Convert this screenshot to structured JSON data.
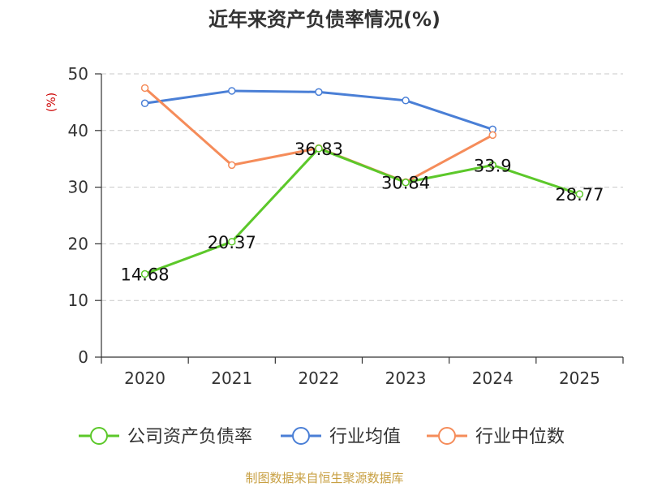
{
  "chart_data": {
    "type": "line",
    "title": "近年来资产负债率情况(%)",
    "ylabel": "(%)",
    "xlabel": "",
    "categories": [
      "2020",
      "2021",
      "2022",
      "2023",
      "2024",
      "2025"
    ],
    "ylim": [
      0,
      50
    ],
    "yticks": [
      "0",
      "10",
      "20",
      "30",
      "40",
      "50"
    ],
    "grid": true,
    "legend_position": "bottom",
    "series": [
      {
        "name": "公司资产负债率",
        "color": "#5cc82a",
        "values": [
          14.68,
          20.37,
          36.83,
          30.84,
          33.9,
          28.77
        ],
        "labels": [
          "14.68",
          "20.37",
          "36.83",
          "30.84",
          "33.9",
          "28.77"
        ]
      },
      {
        "name": "行业均值",
        "color": "#4a7fd6",
        "values": [
          44.8,
          47.0,
          46.8,
          45.3,
          40.2,
          null
        ]
      },
      {
        "name": "行业中位数",
        "color": "#f58c5a",
        "values": [
          47.5,
          33.9,
          36.9,
          30.9,
          39.2,
          null
        ]
      }
    ]
  },
  "footer": {
    "source": "制图数据来自恒生聚源数据库"
  },
  "colors": {
    "axis": "#333333",
    "grid": "#c8c8c8",
    "ylabel": "#cc0000",
    "footer": "#c8a043"
  }
}
